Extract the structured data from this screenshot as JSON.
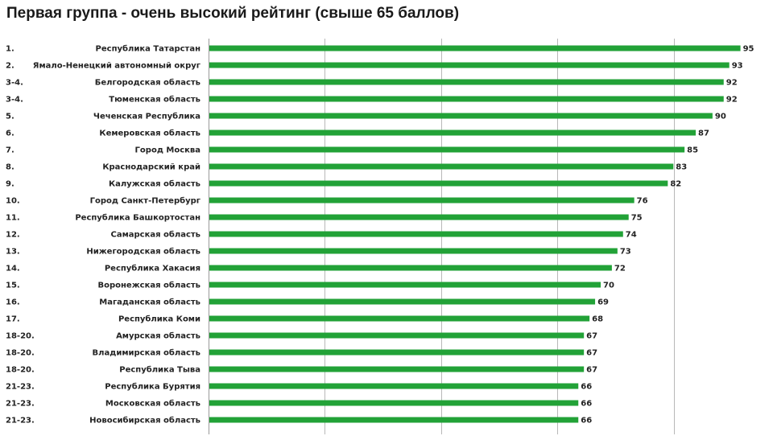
{
  "chart_data": {
    "type": "bar",
    "orientation": "horizontal",
    "title": "Первая группа - очень высокий рейтинг (свыше 65 баллов)",
    "xlabel": "",
    "ylabel": "",
    "xlim": [
      0,
      100
    ],
    "grid": true,
    "legend": "none",
    "bar_color": "#22a237",
    "ranks": [
      "1.",
      "2.",
      "3-4.",
      "3-4.",
      "5.",
      "6.",
      "7.",
      "8.",
      "9.",
      "10.",
      "11.",
      "12.",
      "13.",
      "14.",
      "15.",
      "16.",
      "17.",
      "18-20.",
      "18-20.",
      "18-20.",
      "21-23.",
      "21-23.",
      "21-23."
    ],
    "categories": [
      "Республика Татарстан",
      "Ямало-Ненецкий автономный округ",
      "Белгородская область",
      "Тюменская область",
      "Чеченская Республика",
      "Кемеровская область",
      "Город Москва",
      "Краснодарский край",
      "Калужская область",
      "Город Санкт-Петербург",
      "Республика Башкортостан",
      "Самарская область",
      "Нижегородская область",
      "Республика Хакасия",
      "Воронежская область",
      "Магаданская область",
      "Республика Коми",
      "Амурская область",
      "Владимирская область",
      "Республика Тыва",
      "Республика Бурятия",
      "Московская область",
      "Новосибирская область"
    ],
    "values": [
      95,
      93,
      92,
      92,
      90,
      87,
      85,
      83,
      82,
      76,
      75,
      74,
      73,
      72,
      70,
      69,
      68,
      67,
      67,
      67,
      66,
      66,
      66
    ]
  }
}
